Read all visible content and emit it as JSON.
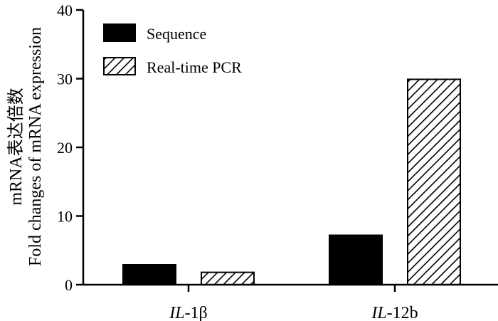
{
  "chart_data": {
    "type": "bar",
    "title": "",
    "xlabel": "",
    "ylabel": [
      "mRNA表达倍数",
      "Fold changes of mRNA expression"
    ],
    "ylim": [
      0,
      40
    ],
    "yticks": [
      "0",
      "10",
      "20",
      "30",
      "40"
    ],
    "categories": [
      {
        "prefix": "IL",
        "suffix": "-1β"
      },
      {
        "prefix": "IL",
        "suffix": "-12b"
      }
    ],
    "series": [
      {
        "name": "Sequence",
        "fill": "solid",
        "color": "#000000",
        "values": [
          2.9,
          7.2
        ]
      },
      {
        "name": "Real-time PCR",
        "fill": "hatch",
        "color": "#000000",
        "values": [
          1.8,
          29.9
        ]
      }
    ],
    "legend_position": "top-left"
  }
}
